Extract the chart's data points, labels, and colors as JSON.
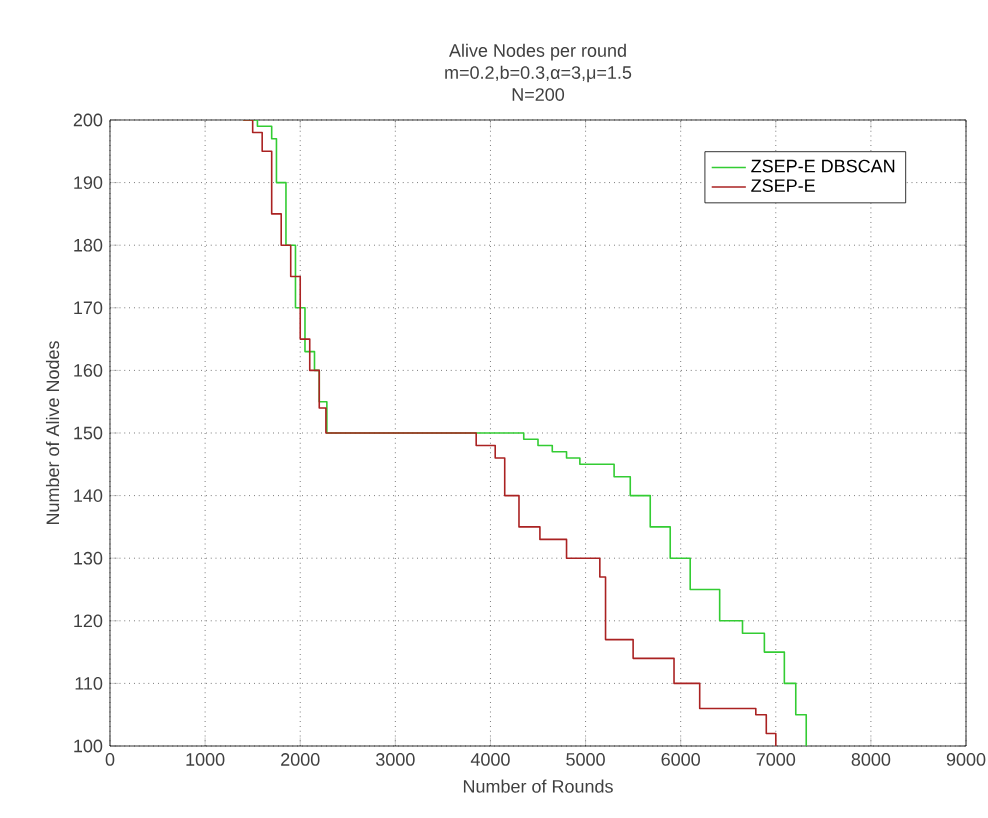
{
  "chart_data": {
    "type": "step",
    "title": "Alive Nodes per round",
    "subtitle": "m=0.2,b=0.3,α=3,μ=1.5",
    "annotations": [
      "N=200"
    ],
    "xlabel": "Number of Rounds",
    "ylabel": "Number of Alive Nodes",
    "xlim": [
      0,
      9000
    ],
    "ylim": [
      100,
      200
    ],
    "xticks": [
      0,
      1000,
      2000,
      3000,
      4000,
      5000,
      6000,
      7000,
      8000,
      9000
    ],
    "yticks": [
      100,
      110,
      120,
      130,
      140,
      150,
      160,
      170,
      180,
      190,
      200
    ],
    "grid": true,
    "legend": "top right",
    "line_style": "solid",
    "series": [
      {
        "name": "ZSEP-E DBSCAN",
        "color": "#33cc33",
        "x": [
          1400,
          1550,
          1700,
          1750,
          1850,
          1950,
          2050,
          2150,
          2200,
          2280,
          4350,
          4500,
          4650,
          4800,
          4940,
          5150,
          5300,
          5470,
          5680,
          5890,
          6100,
          6410,
          6650,
          6880,
          7090,
          7210,
          7320
        ],
        "values": [
          200,
          199,
          197,
          190,
          180,
          170,
          163,
          160,
          155,
          150,
          149,
          148,
          147,
          146,
          145,
          145,
          143,
          140,
          135,
          130,
          125,
          120,
          118,
          115,
          110,
          105,
          100
        ]
      },
      {
        "name": "ZSEP-E",
        "color": "#aa2222",
        "x": [
          1400,
          1500,
          1600,
          1700,
          1800,
          1900,
          2000,
          2100,
          2200,
          2270,
          3720,
          3850,
          4050,
          4150,
          4300,
          4520,
          4800,
          5150,
          5210,
          5500,
          5930,
          6200,
          6790,
          6900,
          7000
        ],
        "values": [
          200,
          198,
          195,
          185,
          180,
          175,
          165,
          160,
          154,
          150,
          150,
          148,
          146,
          140,
          135,
          133,
          130,
          127,
          117,
          114,
          110,
          106,
          105,
          102,
          100
        ]
      }
    ]
  }
}
